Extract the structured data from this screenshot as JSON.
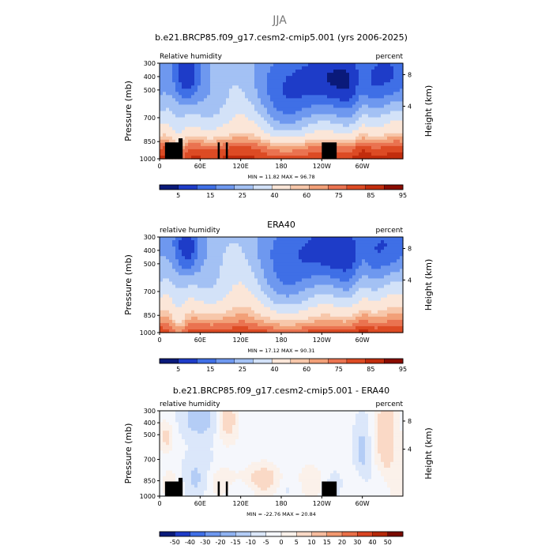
{
  "figure": {
    "title": "JJA"
  },
  "chart_data": [
    {
      "type": "heatmap",
      "title": "b.e21.BRCP85.f09_g17.cesm2-cmip5.001 (yrs 2006-2025)",
      "left_label": "Relative humidity",
      "right_label": "percent",
      "ylabel": "Pressure (mb)",
      "ylabel_right": "Height (km)",
      "x_ticks": [
        "0",
        "60E",
        "120E",
        "180",
        "120W",
        "60W"
      ],
      "y_ticks": [
        "300",
        "400",
        "500",
        "700",
        "850",
        "1000"
      ],
      "y_right_ticks": [
        "8",
        "4"
      ],
      "ylim": [
        1000,
        300
      ],
      "stats": "MIN =   11.82   MAX =   96.78",
      "colorbar_labels": [
        "5",
        "15",
        "25",
        "40",
        "60",
        "75",
        "85",
        "95"
      ],
      "kind": "abs",
      "terrain": true
    },
    {
      "type": "heatmap",
      "title": "ERA40",
      "left_label": "relative humidity",
      "right_label": "percent",
      "ylabel": "Pressure (mb)",
      "ylabel_right": "Height (km)",
      "x_ticks": [
        "0",
        "60E",
        "120E",
        "180",
        "120W",
        "60W"
      ],
      "y_ticks": [
        "300",
        "400",
        "500",
        "700",
        "850",
        "1000"
      ],
      "y_right_ticks": [
        "8",
        "4"
      ],
      "ylim": [
        1000,
        300
      ],
      "stats": "MIN =   17.12   MAX =   90.31",
      "colorbar_labels": [
        "5",
        "15",
        "25",
        "40",
        "60",
        "75",
        "85",
        "95"
      ],
      "kind": "abs",
      "terrain": false
    },
    {
      "type": "heatmap",
      "title": "b.e21.BRCP85.f09_g17.cesm2-cmip5.001 - ERA40",
      "left_label": "relative humidity",
      "right_label": "percent",
      "ylabel": "Pressure (mb)",
      "ylabel_right": "Height (km)",
      "x_ticks": [
        "0",
        "60E",
        "120E",
        "180",
        "120W",
        "60W"
      ],
      "y_ticks": [
        "300",
        "400",
        "500",
        "700",
        "850",
        "1000"
      ],
      "y_right_ticks": [
        "8",
        "4"
      ],
      "ylim": [
        1000,
        300
      ],
      "stats": "MIN =  -22.76   MAX =   20.84",
      "colorbar_labels": [
        "-50",
        "-40",
        "-30",
        "-20",
        "-15",
        "-10",
        "-5",
        "0",
        "5",
        "10",
        "15",
        "20",
        "30",
        "40",
        "50"
      ],
      "kind": "diff",
      "terrain": true
    }
  ],
  "colors": {
    "abs": [
      "#0a1a7a",
      "#1e3cc8",
      "#3f6fe6",
      "#6e98ef",
      "#a3c1f4",
      "#d3e2f8",
      "#fbe6d8",
      "#f7c7aa",
      "#f2a078",
      "#ea7350",
      "#dd4b24",
      "#c22d0d",
      "#8a0c00"
    ],
    "diff": [
      "#0a1a7a",
      "#1e3cc8",
      "#3f6fe6",
      "#6e98ef",
      "#8fb2f1",
      "#b4cdf6",
      "#dbe7fa",
      "#f5f7fc",
      "#fbf1ea",
      "#fad9c6",
      "#f7bc9e",
      "#f2986f",
      "#e96f47",
      "#d94522",
      "#b62808",
      "#7a0a00"
    ]
  }
}
